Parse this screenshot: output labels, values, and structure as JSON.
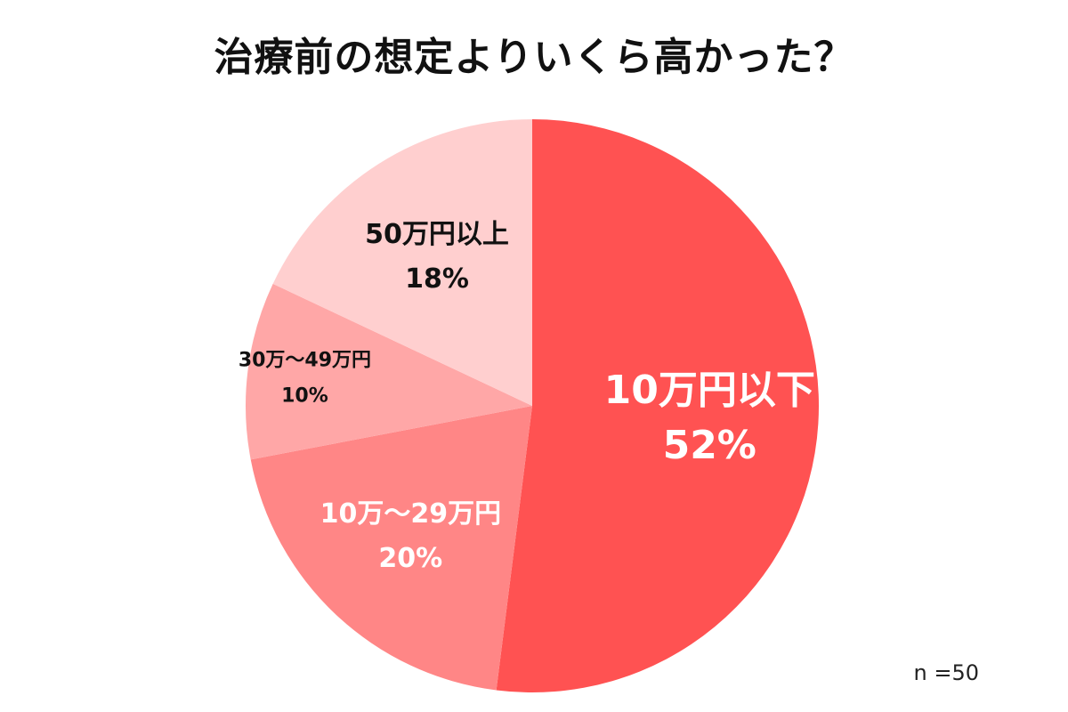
{
  "chart_data": {
    "type": "pie",
    "title": "治療前の想定よりいくら高かった？",
    "slices": [
      {
        "label": "10万円以下",
        "value": 52,
        "value_label": "52%",
        "color": "#ff5252",
        "text_color": "#ffffff"
      },
      {
        "label": "10万〜29万円",
        "value": 20,
        "value_label": "20%",
        "color": "#ff8686",
        "text_color": "#ffffff"
      },
      {
        "label": "30万〜49万円",
        "value": 10,
        "value_label": "10%",
        "color": "#ffa7a7",
        "text_color": "#111111"
      },
      {
        "label": "50万円以上",
        "value": 18,
        "value_label": "18%",
        "color": "#ffcfcf",
        "text_color": "#111111"
      }
    ],
    "sample_size": "n =50"
  }
}
